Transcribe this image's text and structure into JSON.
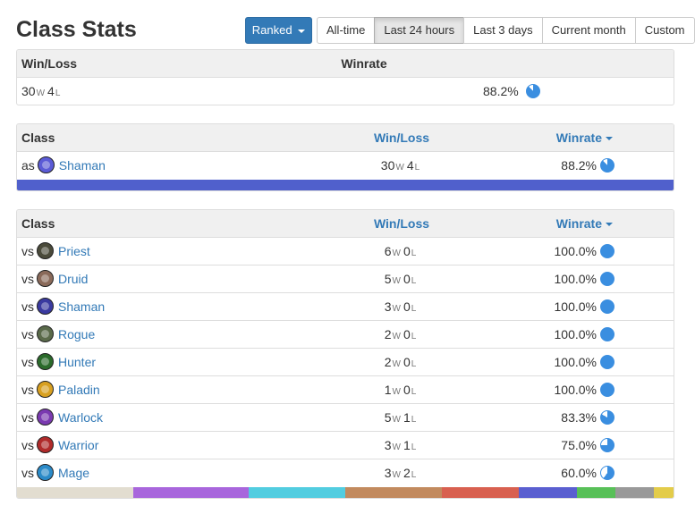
{
  "page": {
    "title": "Class Stats"
  },
  "toolbar": {
    "ranked_label": "Ranked",
    "ranges": [
      {
        "label": "All-time",
        "active": false
      },
      {
        "label": "Last 24 hours",
        "active": true
      },
      {
        "label": "Last 3 days",
        "active": false
      },
      {
        "label": "Current month",
        "active": false
      },
      {
        "label": "Custom",
        "active": false
      }
    ]
  },
  "summary": {
    "headers": {
      "winloss": "Win/Loss",
      "winrate": "Winrate"
    },
    "wins": "30",
    "win_suffix": "W",
    "losses": "4",
    "loss_suffix": "L",
    "winrate": "88.2%",
    "winrate_value": 0.882
  },
  "as_table": {
    "headers": {
      "class": "Class",
      "winloss": "Win/Loss",
      "winrate": "Winrate"
    },
    "rows": [
      {
        "prefix": "as",
        "cls": "Shaman",
        "icon": "shaman-icon",
        "color": "#5b5bd6",
        "wins": "30",
        "losses": "4",
        "winrate": "88.2%",
        "winrate_value": 0.882
      }
    ],
    "bar": [
      {
        "color": "#5060cc",
        "share": 1.0
      }
    ]
  },
  "vs_table": {
    "headers": {
      "class": "Class",
      "winloss": "Win/Loss",
      "winrate": "Winrate"
    },
    "win_suffix": "W",
    "loss_suffix": "L",
    "rows": [
      {
        "prefix": "vs",
        "cls": "Priest",
        "icon": "priest-icon",
        "color": "#4a4a3a",
        "wins": "6",
        "losses": "0",
        "winrate": "100.0%",
        "winrate_value": 1.0
      },
      {
        "prefix": "vs",
        "cls": "Druid",
        "icon": "druid-icon",
        "color": "#8a6a5a",
        "wins": "5",
        "losses": "0",
        "winrate": "100.0%",
        "winrate_value": 1.0
      },
      {
        "prefix": "vs",
        "cls": "Shaman",
        "icon": "shaman-icon",
        "color": "#3a3aa0",
        "wins": "3",
        "losses": "0",
        "winrate": "100.0%",
        "winrate_value": 1.0
      },
      {
        "prefix": "vs",
        "cls": "Rogue",
        "icon": "rogue-icon",
        "color": "#5a6a4a",
        "wins": "2",
        "losses": "0",
        "winrate": "100.0%",
        "winrate_value": 1.0
      },
      {
        "prefix": "vs",
        "cls": "Hunter",
        "icon": "hunter-icon",
        "color": "#2a6a2a",
        "wins": "2",
        "losses": "0",
        "winrate": "100.0%",
        "winrate_value": 1.0
      },
      {
        "prefix": "vs",
        "cls": "Paladin",
        "icon": "paladin-icon",
        "color": "#d8a020",
        "wins": "1",
        "losses": "0",
        "winrate": "100.0%",
        "winrate_value": 1.0
      },
      {
        "prefix": "vs",
        "cls": "Warlock",
        "icon": "warlock-icon",
        "color": "#7a3ab0",
        "wins": "5",
        "losses": "1",
        "winrate": "83.3%",
        "winrate_value": 0.833
      },
      {
        "prefix": "vs",
        "cls": "Warrior",
        "icon": "warrior-icon",
        "color": "#b02a2a",
        "wins": "3",
        "losses": "1",
        "winrate": "75.0%",
        "winrate_value": 0.75
      },
      {
        "prefix": "vs",
        "cls": "Mage",
        "icon": "mage-icon",
        "color": "#2a8ac8",
        "wins": "3",
        "losses": "2",
        "winrate": "60.0%",
        "winrate_value": 0.6
      }
    ],
    "bar": [
      {
        "color": "#e2ddd0",
        "share": 6
      },
      {
        "color": "#a866dc",
        "share": 6
      },
      {
        "color": "#52cde0",
        "share": 5
      },
      {
        "color": "#c28a5e",
        "share": 5
      },
      {
        "color": "#d86050",
        "share": 4
      },
      {
        "color": "#5a5fd0",
        "share": 3
      },
      {
        "color": "#58c058",
        "share": 2
      },
      {
        "color": "#999999",
        "share": 2
      },
      {
        "color": "#e3cc4a",
        "share": 1
      }
    ]
  },
  "colors": {
    "accent": "#337ab7",
    "pie": "#3a8ee0",
    "pie_bg": "#ffffff"
  }
}
